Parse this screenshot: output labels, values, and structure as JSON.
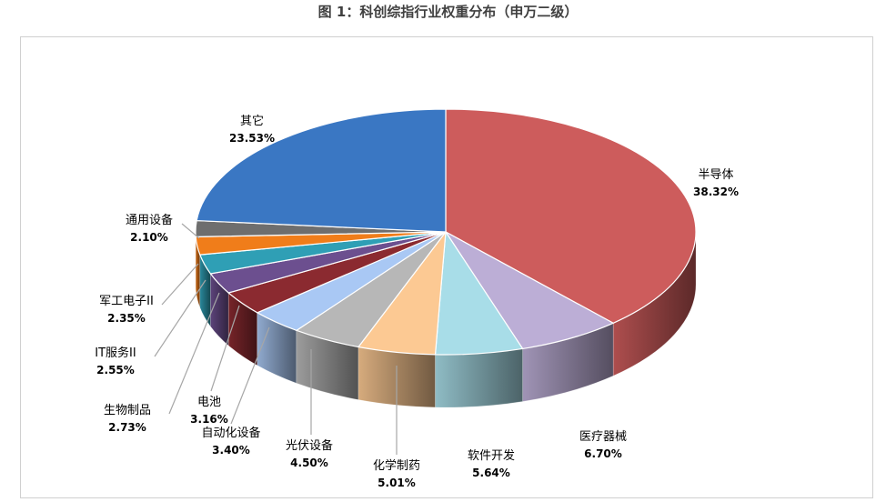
{
  "title": "图 1：科创综指行业权重分布（申万二级）",
  "chart_data": {
    "type": "pie",
    "title": "图 1：科创综指行业权重分布（申万二级）",
    "slices": [
      {
        "label": "半导体",
        "value": 38.32,
        "value_text": "38.32%",
        "color": "#cd5c5c"
      },
      {
        "label": "医疗器械",
        "value": 6.7,
        "value_text": "6.70%",
        "color": "#bcaed6"
      },
      {
        "label": "软件开发",
        "value": 5.64,
        "value_text": "5.64%",
        "color": "#a8dde8"
      },
      {
        "label": "化学制药",
        "value": 5.01,
        "value_text": "5.01%",
        "color": "#fcc993"
      },
      {
        "label": "光伏设备",
        "value": 4.5,
        "value_text": "4.50%",
        "color": "#b7b7b7"
      },
      {
        "label": "自动化设备",
        "value": 3.4,
        "value_text": "3.40%",
        "color": "#a9c8f4"
      },
      {
        "label": "电池",
        "value": 3.16,
        "value_text": "3.16%",
        "color": "#8b2a30"
      },
      {
        "label": "生物制品",
        "value": 2.73,
        "value_text": "2.73%",
        "color": "#6c4f8f"
      },
      {
        "label": "IT服务II",
        "value": 2.55,
        "value_text": "2.55%",
        "color": "#2f9fb5"
      },
      {
        "label": "军工电子II",
        "value": 2.35,
        "value_text": "2.35%",
        "color": "#f07d1a"
      },
      {
        "label": "通用设备",
        "value": 2.1,
        "value_text": "2.10%",
        "color": "#6e6e6e"
      },
      {
        "label": "其它",
        "value": 23.53,
        "value_text": "23.53%",
        "color": "#3a77c3"
      }
    ]
  }
}
